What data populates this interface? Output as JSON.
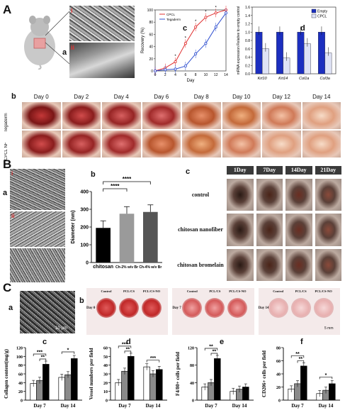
{
  "panelA": {
    "label": "A",
    "sub_a": "a",
    "sub_b": "b",
    "sub_c": "c",
    "sub_d": "d",
    "roman_i": "i",
    "roman_ii": "ii",
    "days": [
      "Day 0",
      "Day 2",
      "Day 4",
      "Day 6",
      "Day 8",
      "Day 10",
      "Day 12",
      "Day 14"
    ],
    "row_labels": [
      "Tegaderm",
      "CPCL NF"
    ]
  },
  "panelB": {
    "label": "B",
    "sub_a": "a",
    "sub_b": "b",
    "sub_c": "c",
    "roman_i": "i",
    "roman_ii": "ii",
    "days": [
      "1Day",
      "7Day",
      "14Day",
      "21Day"
    ],
    "rows": [
      "control",
      "chitosan nanofiber",
      "chitosan bromelain"
    ]
  },
  "panelC": {
    "label": "C",
    "sub_a": "a",
    "sub_b": "b",
    "sub_c": "c",
    "sub_d": "d",
    "sub_e": "e",
    "sub_f": "f",
    "scale": "10 μm",
    "scale2": "5 mm",
    "groups": [
      "Control",
      "PCL/CS",
      "PCL/CS-NO"
    ],
    "days": [
      "Day 0",
      "Day 7",
      "Day 14"
    ]
  },
  "chart_data": [
    {
      "id": "A-c",
      "type": "line",
      "x": [
        0,
        2,
        4,
        6,
        8,
        10,
        12,
        14
      ],
      "xlabel": "Day",
      "ylabel": "Recovery (%)",
      "ylim": [
        0,
        100
      ],
      "yticks": [
        0,
        20,
        40,
        60,
        80,
        100
      ],
      "series": [
        {
          "name": "CPCL",
          "color": "#e03030",
          "values": [
            0,
            5,
            15,
            45,
            72,
            88,
            95,
            100
          ]
        },
        {
          "name": "Tegaderm",
          "color": "#3050d0",
          "values": [
            0,
            2,
            3,
            8,
            28,
            45,
            72,
            95
          ]
        }
      ],
      "significance": [
        "*",
        "*",
        "*",
        "*",
        "*"
      ]
    },
    {
      "id": "A-d",
      "type": "bar",
      "categories": [
        "Krt10",
        "Krt14",
        "Col1a",
        "Col3a"
      ],
      "ylabel": "mRNA expression Relative to empty control",
      "ylim": [
        0,
        1.6
      ],
      "yticks": [
        0,
        0.2,
        0.4,
        0.6,
        0.8,
        1.0,
        1.2,
        1.4,
        1.6
      ],
      "series": [
        {
          "name": "Empty",
          "color": "#1c2fbf",
          "values": [
            1.0,
            1.0,
            1.0,
            1.0
          ]
        },
        {
          "name": "CPCL",
          "color": "#dfe3f6",
          "values": [
            0.6,
            0.38,
            0.72,
            0.5
          ]
        }
      ]
    },
    {
      "id": "B-b",
      "type": "bar",
      "categories": [
        "chitosan",
        "Ch-2% w/v Br",
        "Ch-4% w/v Br"
      ],
      "ylabel": "Diameter (nm)",
      "ylim": [
        0,
        400
      ],
      "yticks": [
        0,
        100,
        200,
        300,
        400
      ],
      "values": [
        195,
        275,
        285
      ],
      "colors": [
        "#000000",
        "#9a9a9a",
        "#555555"
      ],
      "significance": [
        "****",
        "****"
      ]
    },
    {
      "id": "C-c",
      "type": "bar",
      "categories": [
        "Day 7",
        "Day 14"
      ],
      "ylabel": "Collagen content(mg/g)",
      "ylim": [
        0,
        120
      ],
      "yticks": [
        0,
        20,
        40,
        60,
        80,
        100,
        120
      ],
      "series": [
        {
          "values": [
            38,
            52
          ]
        },
        {
          "values": [
            45,
            58
          ]
        },
        {
          "values": [
            82,
            95
          ]
        }
      ],
      "significance": [
        "***",
        "**",
        "*"
      ]
    },
    {
      "id": "C-d",
      "type": "bar",
      "categories": [
        "Day 7",
        "Day 14"
      ],
      "ylabel": "Vessel numbers per field",
      "ylim": [
        0,
        60
      ],
      "yticks": [
        0,
        10,
        20,
        30,
        40,
        50,
        60
      ],
      "series": [
        {
          "values": [
            20,
            38
          ]
        },
        {
          "values": [
            33,
            30
          ]
        },
        {
          "values": [
            50,
            35
          ]
        }
      ],
      "significance": [
        "***",
        "**",
        "***"
      ]
    },
    {
      "id": "C-e",
      "type": "bar",
      "categories": [
        "Day 7",
        "Day 14"
      ],
      "ylabel": "F4/80+ cells per field",
      "ylim": [
        0,
        120
      ],
      "yticks": [
        0,
        40,
        80,
        120
      ],
      "series": [
        {
          "values": [
            30,
            20
          ]
        },
        {
          "values": [
            40,
            25
          ]
        },
        {
          "values": [
            95,
            30
          ]
        }
      ],
      "significance": [
        "**",
        "**"
      ]
    },
    {
      "id": "C-f",
      "type": "bar",
      "categories": [
        "Day 7",
        "Day 14"
      ],
      "ylabel": "CD206+ cells per field",
      "ylim": [
        0,
        80
      ],
      "yticks": [
        0,
        20,
        40,
        60,
        80
      ],
      "series": [
        {
          "values": [
            17,
            10
          ]
        },
        {
          "values": [
            25,
            15
          ]
        },
        {
          "values": [
            52,
            25
          ]
        }
      ],
      "significance": [
        "**",
        "**",
        "*"
      ]
    }
  ]
}
